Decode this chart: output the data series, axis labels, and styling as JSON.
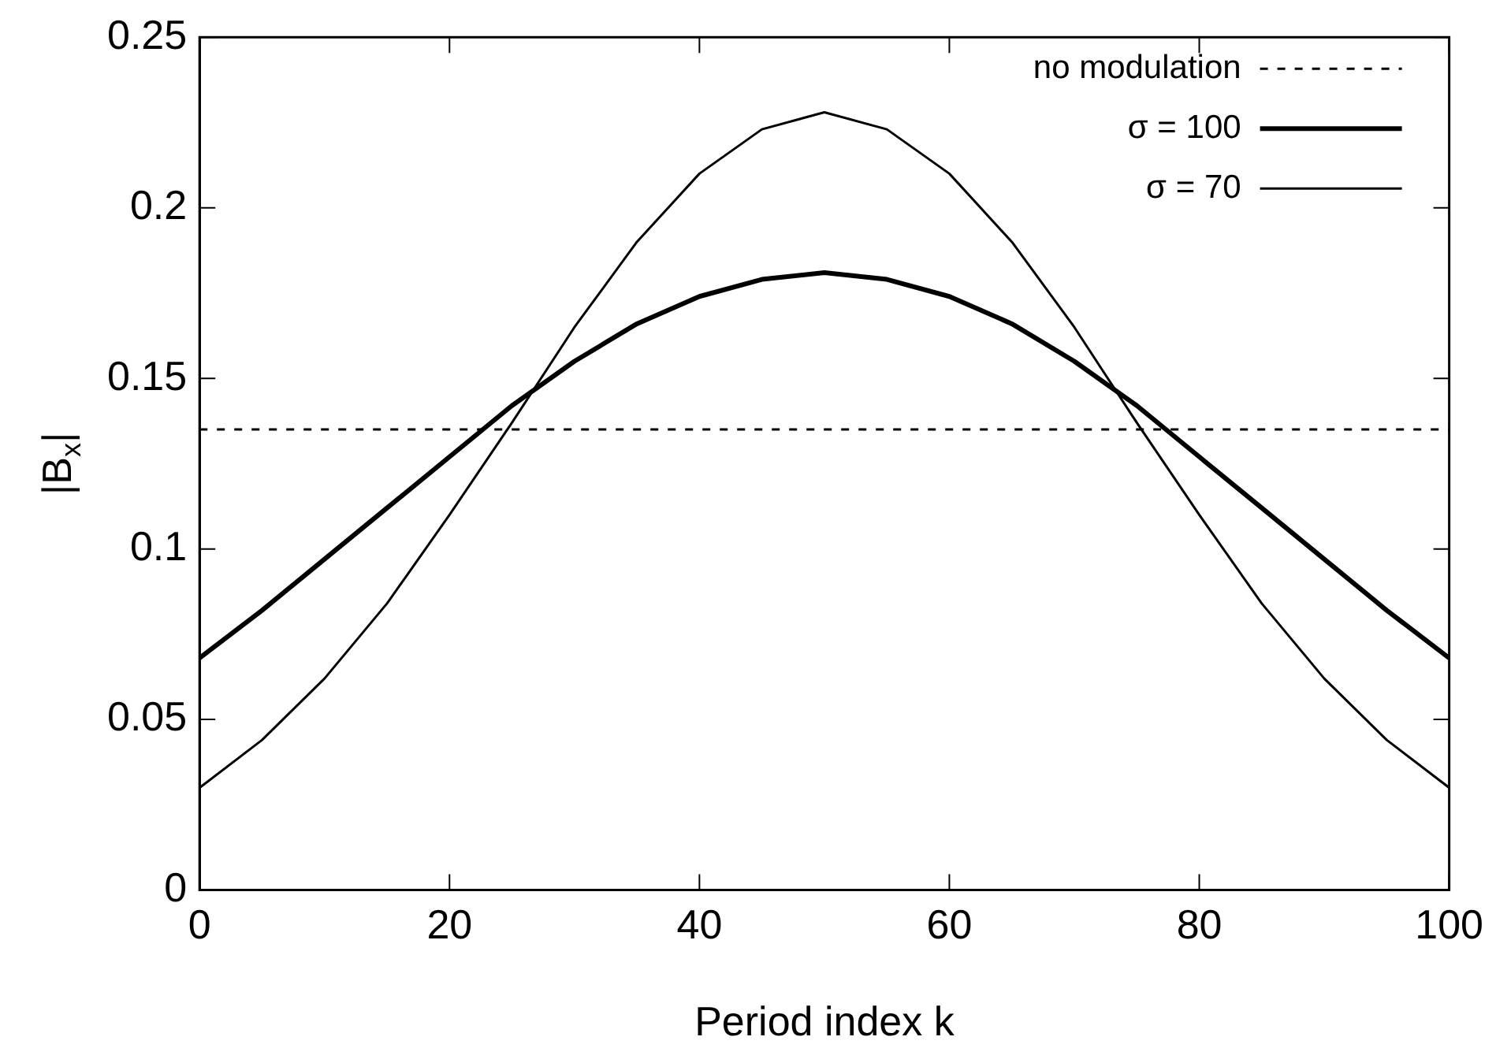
{
  "chart_data": {
    "type": "line",
    "xlabel": "Period index k",
    "ylabel": "|B$_{x}$|",
    "xlim": [
      0,
      100
    ],
    "xticks": [
      0,
      20,
      40,
      60,
      80,
      100
    ],
    "ylim": [
      0,
      0.25
    ],
    "yticks": [
      0,
      0.05,
      0.1,
      0.15,
      0.2,
      0.25
    ],
    "grid": false,
    "legend": "top right",
    "marker": "none",
    "series": [
      {
        "name": "no modulation",
        "color": "#000000",
        "line_style": "dotted",
        "x": [
          0,
          100
        ],
        "values": [
          0.135,
          0.135
        ]
      },
      {
        "name": "σ = 100",
        "color": "#000000",
        "line_style": "solid",
        "x": [
          0,
          5,
          10,
          15,
          20,
          25,
          30,
          35,
          40,
          45,
          50,
          55,
          60,
          65,
          70,
          75,
          80,
          85,
          90,
          95,
          100
        ],
        "values": [
          0.068,
          0.082,
          0.097,
          0.112,
          0.127,
          0.142,
          0.155,
          0.166,
          0.174,
          0.179,
          0.181,
          0.179,
          0.174,
          0.166,
          0.155,
          0.142,
          0.127,
          0.112,
          0.097,
          0.082,
          0.068
        ]
      },
      {
        "name": "σ = 70",
        "color": "#000000",
        "line_style": "solid",
        "x": [
          0,
          5,
          10,
          15,
          20,
          25,
          30,
          35,
          40,
          45,
          50,
          55,
          60,
          65,
          70,
          75,
          80,
          85,
          90,
          95,
          100
        ],
        "values": [
          0.03,
          0.044,
          0.062,
          0.084,
          0.11,
          0.137,
          0.165,
          0.19,
          0.21,
          0.223,
          0.228,
          0.223,
          0.21,
          0.19,
          0.165,
          0.137,
          0.11,
          0.084,
          0.062,
          0.044,
          0.03
        ]
      }
    ]
  }
}
